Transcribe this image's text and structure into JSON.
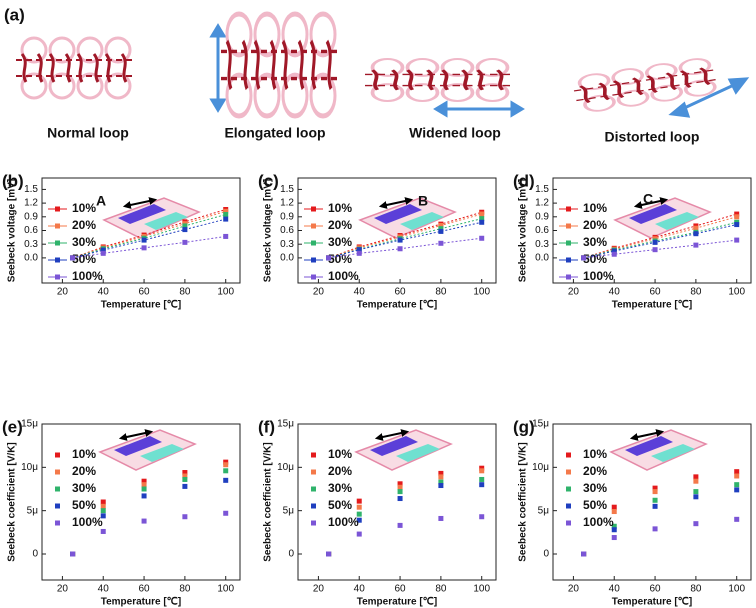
{
  "figure_a": {
    "label": "(a)",
    "captions": [
      "Normal   loop",
      "Elongated   loop",
      "Widened   loop",
      "Distorted   loop"
    ]
  },
  "chart_data": [
    {
      "type": "line",
      "panel_label": "(b)",
      "inset_label": "A",
      "x_label": "Temperature [℃]",
      "y_label": "Seebeck voltage [mV]",
      "x": [
        25,
        40,
        60,
        80,
        100
      ],
      "xlim": [
        10,
        107
      ],
      "xticks": [
        20,
        40,
        60,
        80,
        100
      ],
      "ylim": [
        -0.55,
        1.75
      ],
      "yticks": [
        {
          "value": 0,
          "label": "0.0"
        },
        {
          "value": 0.3,
          "label": "0.3"
        },
        {
          "value": 0.6,
          "label": "0.6"
        },
        {
          "value": 0.9,
          "label": "0.9"
        },
        {
          "value": 1.2,
          "label": "1.2"
        },
        {
          "value": 1.5,
          "label": "1.5"
        }
      ],
      "series": [
        {
          "name": "10%",
          "color": "#e41a1c",
          "values": [
            0,
            0.24,
            0.5,
            0.79,
            1.06
          ]
        },
        {
          "name": "20%",
          "color": "#f4794a",
          "values": [
            0,
            0.22,
            0.47,
            0.75,
            1.02
          ]
        },
        {
          "name": "30%",
          "color": "#2fb36b",
          "values": [
            0,
            0.2,
            0.43,
            0.7,
            0.95
          ]
        },
        {
          "name": "50%",
          "color": "#1f3fbf",
          "values": [
            0,
            0.17,
            0.39,
            0.62,
            0.85
          ]
        },
        {
          "name": "100%",
          "color": "#7b55d6",
          "values": [
            0,
            0.1,
            0.22,
            0.34,
            0.47
          ]
        }
      ]
    },
    {
      "type": "line",
      "panel_label": "(c)",
      "inset_label": "B",
      "x_label": "Temperature [℃]",
      "y_label": "Seebeck voltage [mV]",
      "x": [
        25,
        40,
        60,
        80,
        100
      ],
      "xlim": [
        10,
        107
      ],
      "xticks": [
        20,
        40,
        60,
        80,
        100
      ],
      "ylim": [
        -0.55,
        1.75
      ],
      "yticks": [
        {
          "value": 0,
          "label": "0.0"
        },
        {
          "value": 0.3,
          "label": "0.3"
        },
        {
          "value": 0.6,
          "label": "0.6"
        },
        {
          "value": 0.9,
          "label": "0.9"
        },
        {
          "value": 1.2,
          "label": "1.2"
        },
        {
          "value": 1.5,
          "label": "1.5"
        }
      ],
      "series": [
        {
          "name": "10%",
          "color": "#e41a1c",
          "values": [
            0,
            0.24,
            0.49,
            0.74,
            1.0
          ]
        },
        {
          "name": "20%",
          "color": "#f4794a",
          "values": [
            0,
            0.22,
            0.46,
            0.71,
            0.96
          ]
        },
        {
          "name": "30%",
          "color": "#2fb36b",
          "values": [
            0,
            0.19,
            0.42,
            0.64,
            0.86
          ]
        },
        {
          "name": "50%",
          "color": "#1f3fbf",
          "values": [
            0,
            0.18,
            0.39,
            0.58,
            0.78
          ]
        },
        {
          "name": "100%",
          "color": "#7b55d6",
          "values": [
            0,
            0.1,
            0.2,
            0.32,
            0.43
          ]
        }
      ]
    },
    {
      "type": "line",
      "panel_label": "(d)",
      "inset_label": "C",
      "x_label": "Temperature [℃]",
      "y_label": "Seebeck voltage [mV]",
      "x": [
        25,
        40,
        60,
        80,
        100
      ],
      "xlim": [
        10,
        107
      ],
      "xticks": [
        20,
        40,
        60,
        80,
        100
      ],
      "ylim": [
        -0.55,
        1.75
      ],
      "yticks": [
        {
          "value": 0,
          "label": "0.0"
        },
        {
          "value": 0.3,
          "label": "0.3"
        },
        {
          "value": 0.6,
          "label": "0.6"
        },
        {
          "value": 0.9,
          "label": "0.9"
        },
        {
          "value": 1.2,
          "label": "1.2"
        },
        {
          "value": 1.5,
          "label": "1.5"
        }
      ],
      "series": [
        {
          "name": "10%",
          "color": "#e41a1c",
          "values": [
            0,
            0.21,
            0.45,
            0.7,
            0.96
          ]
        },
        {
          "name": "20%",
          "color": "#f4794a",
          "values": [
            0,
            0.19,
            0.42,
            0.65,
            0.9
          ]
        },
        {
          "name": "30%",
          "color": "#2fb36b",
          "values": [
            0,
            0.17,
            0.37,
            0.56,
            0.78
          ]
        },
        {
          "name": "50%",
          "color": "#1f3fbf",
          "values": [
            0,
            0.15,
            0.34,
            0.53,
            0.73
          ]
        },
        {
          "name": "100%",
          "color": "#7b55d6",
          "values": [
            0,
            0.08,
            0.18,
            0.28,
            0.39
          ]
        }
      ]
    },
    {
      "type": "scatter",
      "panel_label": "(e)",
      "x_label": "Temperature [℃]",
      "y_label": "Seebeck coefficient [V/K]",
      "x": [
        25,
        40,
        60,
        80,
        100
      ],
      "xlim": [
        10,
        107
      ],
      "xticks": [
        20,
        40,
        60,
        80,
        100
      ],
      "ylim": [
        -3e-06,
        1.5e-05
      ],
      "yticks": [
        0,
        {
          "value": 5e-06,
          "label": "5μ"
        },
        {
          "value": 1e-05,
          "label": "10μ"
        },
        {
          "value": 1.5e-05,
          "label": "15μ"
        }
      ],
      "series": [
        {
          "name": "10%",
          "color": "#e41a1c",
          "values": [
            0,
            6e-06,
            8.4e-06,
            9.4e-06,
            1.06e-05
          ]
        },
        {
          "name": "20%",
          "color": "#f4794a",
          "values": [
            0,
            5.5e-06,
            8e-06,
            9e-06,
            1.03e-05
          ]
        },
        {
          "name": "30%",
          "color": "#2fb36b",
          "values": [
            0,
            5e-06,
            7.5e-06,
            8.6e-06,
            9.6e-06
          ]
        },
        {
          "name": "50%",
          "color": "#1f3fbf",
          "values": [
            0,
            4.4e-06,
            6.7e-06,
            7.8e-06,
            8.5e-06
          ]
        },
        {
          "name": "100%",
          "color": "#7b55d6",
          "values": [
            0,
            2.6e-06,
            3.8e-06,
            4.3e-06,
            4.7e-06
          ]
        }
      ]
    },
    {
      "type": "scatter",
      "panel_label": "(f)",
      "x_label": "Temperature [℃]",
      "y_label": "Seebeck coefficient [V/K]",
      "x": [
        25,
        40,
        60,
        80,
        100
      ],
      "xlim": [
        10,
        107
      ],
      "xticks": [
        20,
        40,
        60,
        80,
        100
      ],
      "ylim": [
        -3e-06,
        1.5e-05
      ],
      "yticks": [
        0,
        {
          "value": 5e-06,
          "label": "5μ"
        },
        {
          "value": 1e-05,
          "label": "10μ"
        },
        {
          "value": 1.5e-05,
          "label": "15μ"
        }
      ],
      "series": [
        {
          "name": "10%",
          "color": "#e41a1c",
          "values": [
            0,
            6.1e-06,
            8.1e-06,
            9.3e-06,
            9.9e-06
          ]
        },
        {
          "name": "20%",
          "color": "#f4794a",
          "values": [
            0,
            5.4e-06,
            7.7e-06,
            8.9e-06,
            9.6e-06
          ]
        },
        {
          "name": "30%",
          "color": "#2fb36b",
          "values": [
            0,
            4.6e-06,
            7.2e-06,
            8.3e-06,
            8.6e-06
          ]
        },
        {
          "name": "50%",
          "color": "#1f3fbf",
          "values": [
            0,
            3.9e-06,
            6.4e-06,
            7.9e-06,
            8e-06
          ]
        },
        {
          "name": "100%",
          "color": "#7b55d6",
          "values": [
            0,
            2.3e-06,
            3.3e-06,
            4.1e-06,
            4.3e-06
          ]
        }
      ]
    },
    {
      "type": "scatter",
      "panel_label": "(g)",
      "x_label": "Temperature [℃]",
      "y_label": "Seebeck coefficient [V/K]",
      "x": [
        25,
        40,
        60,
        80,
        100
      ],
      "xlim": [
        10,
        107
      ],
      "xticks": [
        20,
        40,
        60,
        80,
        100
      ],
      "ylim": [
        -3e-06,
        1.5e-05
      ],
      "yticks": [
        0,
        {
          "value": 5e-06,
          "label": "5μ"
        },
        {
          "value": 1e-05,
          "label": "10μ"
        },
        {
          "value": 1.5e-05,
          "label": "15μ"
        }
      ],
      "series": [
        {
          "name": "10%",
          "color": "#e41a1c",
          "values": [
            0,
            5.4e-06,
            7.6e-06,
            8.9e-06,
            9.5e-06
          ]
        },
        {
          "name": "20%",
          "color": "#f4794a",
          "values": [
            0,
            4.9e-06,
            7.2e-06,
            8.4e-06,
            9e-06
          ]
        },
        {
          "name": "30%",
          "color": "#2fb36b",
          "values": [
            0,
            3.2e-06,
            6.2e-06,
            7.2e-06,
            8e-06
          ]
        },
        {
          "name": "50%",
          "color": "#1f3fbf",
          "values": [
            0,
            2.8e-06,
            5.5e-06,
            6.6e-06,
            7.4e-06
          ]
        },
        {
          "name": "100%",
          "color": "#7b55d6",
          "values": [
            0,
            1.9e-06,
            2.9e-06,
            3.5e-06,
            4e-06
          ]
        }
      ]
    }
  ]
}
